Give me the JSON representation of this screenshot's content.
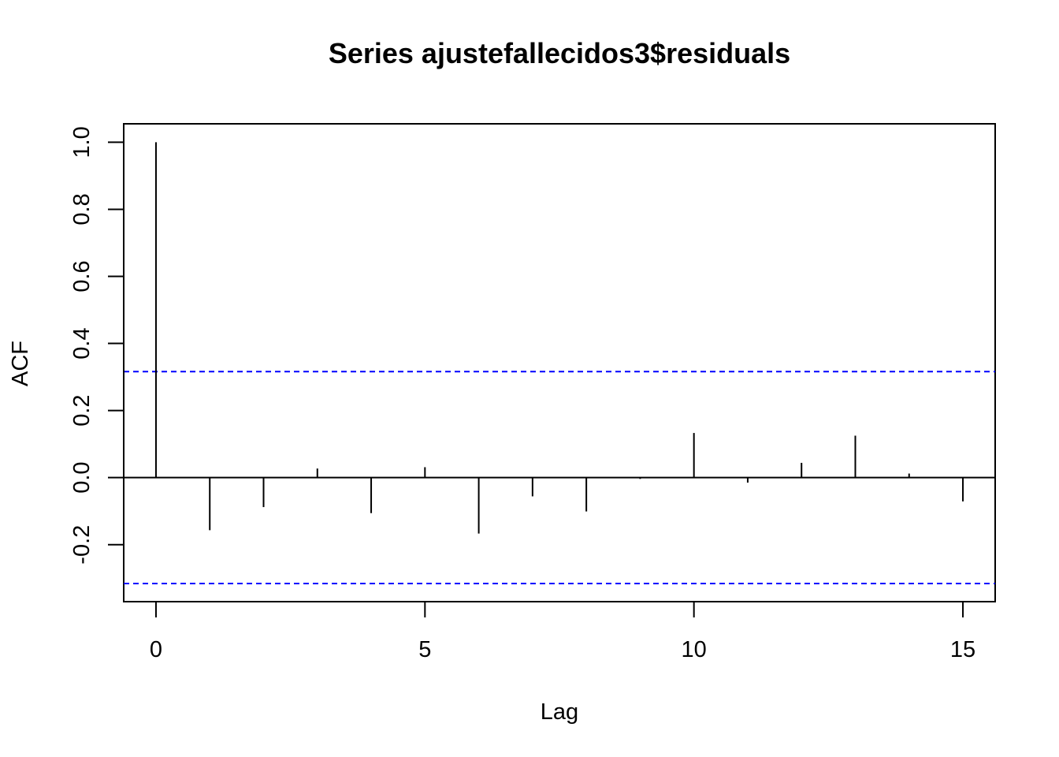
{
  "chart_data": {
    "type": "bar",
    "title": "Series  ajustefallecidos3$residuals",
    "xlabel": "Lag",
    "ylabel": "ACF",
    "xlim": [
      -0.6,
      15.6
    ],
    "ylim": [
      -0.37,
      1.055
    ],
    "x_ticks": [
      "0",
      "5",
      "10",
      "15"
    ],
    "y_ticks": [
      "-0.2",
      "0.0",
      "0.2",
      "0.4",
      "0.6",
      "0.8",
      "1.0"
    ],
    "lags": [
      0,
      1,
      2,
      3,
      4,
      5,
      6,
      7,
      8,
      9,
      10,
      11,
      12,
      13,
      14,
      15
    ],
    "values": [
      1.0,
      -0.157,
      -0.088,
      0.027,
      -0.106,
      0.031,
      -0.167,
      -0.056,
      -0.101,
      -0.004,
      0.133,
      -0.015,
      0.044,
      0.125,
      0.012,
      -0.071
    ],
    "zero_line": 0,
    "confidence_bounds": [
      0.316,
      -0.316
    ],
    "confidence_color": "#0000ff",
    "grid": false,
    "legend": "none"
  }
}
